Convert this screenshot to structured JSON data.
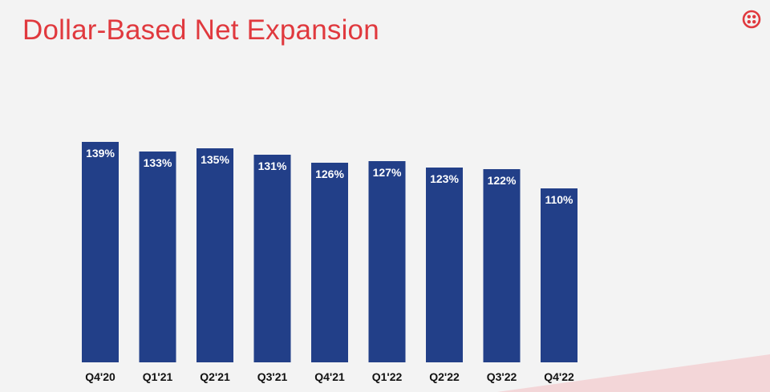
{
  "header": {
    "title": "Dollar-Based Net Expansion",
    "logo_icon": "twilio-logo-icon"
  },
  "colors": {
    "title": "#e0393e",
    "bar": "#223f88",
    "label_text": "#ffffff",
    "tick_text": "#111111",
    "accent_corner": "#f3d6d8",
    "background": "#f3f3f3"
  },
  "chart_data": {
    "type": "bar",
    "title": "Dollar-Based Net Expansion",
    "xlabel": "",
    "ylabel": "",
    "categories": [
      "Q4'20",
      "Q1'21",
      "Q2'21",
      "Q3'21",
      "Q4'21",
      "Q1'22",
      "Q2'22",
      "Q3'22",
      "Q4'22"
    ],
    "values": [
      139,
      133,
      135,
      131,
      126,
      127,
      123,
      122,
      110
    ],
    "data_labels": [
      "139%",
      "133%",
      "135%",
      "131%",
      "126%",
      "127%",
      "123%",
      "122%",
      "110%"
    ],
    "ylim": [
      0,
      145
    ],
    "grid": false,
    "legend": "none"
  }
}
